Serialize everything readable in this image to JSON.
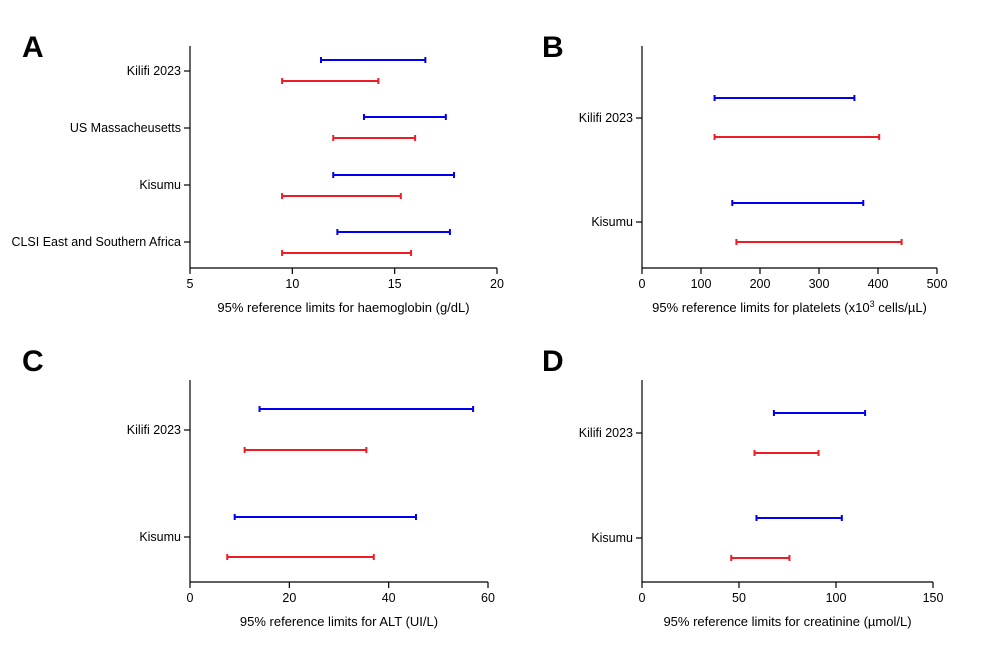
{
  "chart_data": [
    {
      "panel": "A",
      "type": "range",
      "categories": [
        "Kilifi 2023",
        "US Massacheusetts",
        "Kisumu",
        "CLSI East and Southern Africa"
      ],
      "series": [
        {
          "color": "#0000ee",
          "ranges": [
            [
              11.4,
              16.5
            ],
            [
              13.5,
              17.5
            ],
            [
              12.0,
              17.9
            ],
            [
              12.2,
              17.7
            ]
          ]
        },
        {
          "color": "#ee1c24",
          "ranges": [
            [
              9.5,
              14.2
            ],
            [
              12.0,
              16.0
            ],
            [
              9.5,
              15.3
            ],
            [
              9.5,
              15.8
            ]
          ]
        }
      ],
      "xticks": [
        "5",
        "10",
        "15",
        "20"
      ],
      "xlim": [
        5,
        20
      ],
      "xlabel_parts": [
        "95% reference limits for haemoglobin (g/dL)"
      ]
    },
    {
      "panel": "B",
      "type": "range",
      "categories": [
        "Kilifi 2023",
        "Kisumu"
      ],
      "series": [
        {
          "color": "#0000ee",
          "ranges": [
            [
              123,
              360
            ],
            [
              153,
              375
            ]
          ]
        },
        {
          "color": "#ee1c24",
          "ranges": [
            [
              123,
              402
            ],
            [
              160,
              440
            ]
          ]
        }
      ],
      "xticks": [
        "0",
        "100",
        "200",
        "300",
        "400",
        "500"
      ],
      "xlim": [
        0,
        500
      ],
      "xlabel_parts": [
        "95% reference limits for platelets  (x10",
        "3",
        " cells/µL)"
      ]
    },
    {
      "panel": "C",
      "type": "range",
      "categories": [
        "Kilifi 2023",
        "Kisumu"
      ],
      "series": [
        {
          "color": "#0000ee",
          "ranges": [
            [
              14,
              57
            ],
            [
              9,
              45.5
            ]
          ]
        },
        {
          "color": "#ee1c24",
          "ranges": [
            [
              11,
              35.5
            ],
            [
              7.5,
              37
            ]
          ]
        }
      ],
      "xticks": [
        "0",
        "20",
        "40",
        "60"
      ],
      "xlim": [
        0,
        60
      ],
      "xlabel_parts": [
        "95% reference limits for ALT (UI/L)"
      ]
    },
    {
      "panel": "D",
      "type": "range",
      "categories": [
        "Kilifi 2023",
        "Kisumu"
      ],
      "series": [
        {
          "color": "#0000ee",
          "ranges": [
            [
              68,
              115
            ],
            [
              59,
              103
            ]
          ]
        },
        {
          "color": "#ee1c24",
          "ranges": [
            [
              58,
              91
            ],
            [
              46,
              76
            ]
          ]
        }
      ],
      "xticks": [
        "0",
        "50",
        "100",
        "150"
      ],
      "xlim": [
        0,
        150
      ],
      "xlabel_parts": [
        "95% reference limits for creatinine (µmol/L)"
      ]
    }
  ]
}
